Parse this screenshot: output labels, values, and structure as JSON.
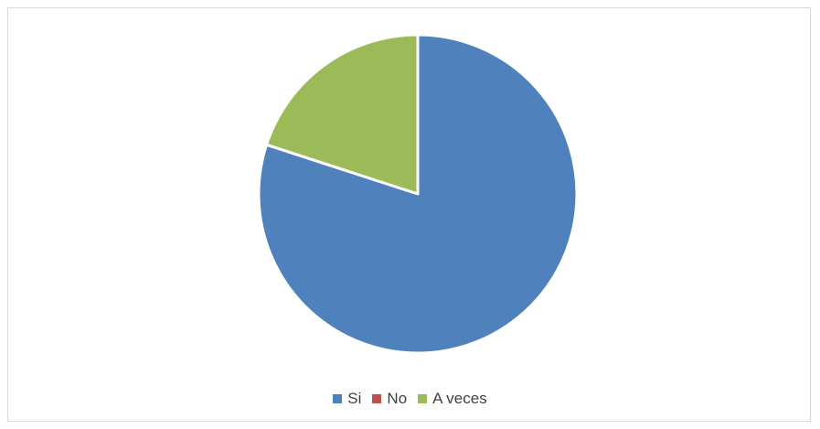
{
  "chart_data": {
    "type": "pie",
    "categories": [
      "Si",
      "No",
      "A veces"
    ],
    "values": [
      80,
      0,
      20
    ],
    "colors": [
      "#4f81bd",
      "#c0504d",
      "#9bbb59"
    ],
    "legend_position": "bottom"
  }
}
